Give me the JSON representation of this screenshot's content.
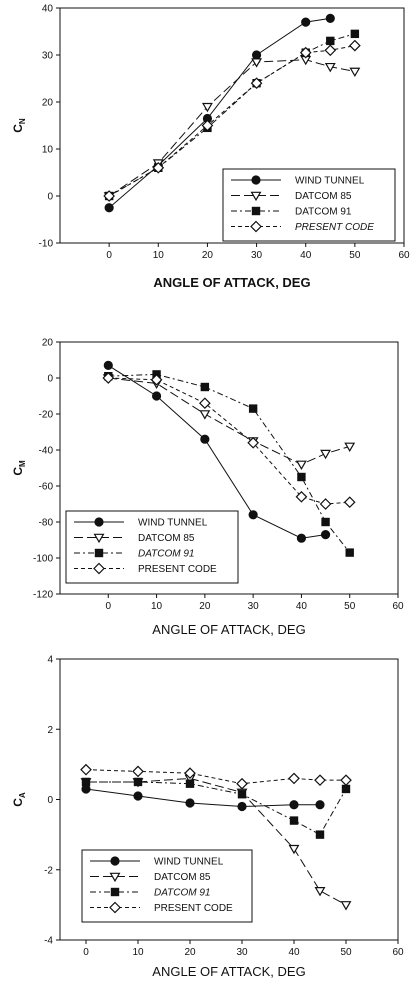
{
  "chart_data": [
    {
      "type": "line",
      "ylabel": "C",
      "ylabel_sub": "N",
      "xlabel": "ANGLE OF ATTACK, DEG",
      "xlim": [
        -10,
        60
      ],
      "ylim": [
        -10,
        40
      ],
      "xticks": [
        0,
        10,
        20,
        30,
        40,
        50,
        60
      ],
      "yticks": [
        -10,
        0,
        10,
        20,
        30,
        40
      ],
      "legend_position": "bottom-right",
      "series": [
        {
          "name": "WIND TUNNEL",
          "marker": "circle",
          "fill": "filled",
          "dash": "solid",
          "italic": false,
          "x": [
            0,
            10,
            20,
            30,
            40,
            45
          ],
          "y": [
            -2.5,
            6.5,
            16.5,
            30,
            37,
            37.8
          ]
        },
        {
          "name": "DATCOM 85",
          "marker": "triangle-down",
          "fill": "open",
          "dash": "longdash",
          "italic": false,
          "x": [
            0,
            10,
            20,
            30,
            40,
            45,
            50
          ],
          "y": [
            0,
            7,
            19,
            28.5,
            29,
            27.5,
            26.5
          ]
        },
        {
          "name": "DATCOM 91",
          "marker": "square",
          "fill": "filled",
          "dash": "dashdot",
          "italic": false,
          "x": [
            0,
            10,
            20,
            30,
            40,
            45,
            50
          ],
          "y": [
            0,
            6,
            14.5,
            24,
            30.5,
            33,
            34.5
          ]
        },
        {
          "name": "PRESENT CODE",
          "marker": "diamond",
          "fill": "open",
          "dash": "shortdash",
          "italic": true,
          "x": [
            0,
            10,
            20,
            30,
            40,
            45,
            50
          ],
          "y": [
            0,
            6,
            15,
            24,
            30.5,
            31,
            32
          ]
        }
      ]
    },
    {
      "type": "line",
      "ylabel": "C",
      "ylabel_sub": "M",
      "xlabel": "ANGLE OF ATTACK, DEG",
      "xlim": [
        -10,
        60
      ],
      "ylim": [
        -120,
        20
      ],
      "xticks": [
        0,
        10,
        20,
        30,
        40,
        50,
        60
      ],
      "yticks": [
        -120,
        -100,
        -80,
        -60,
        -40,
        -20,
        0,
        20
      ],
      "legend_position": "bottom-left",
      "series": [
        {
          "name": "WIND TUNNEL",
          "marker": "circle",
          "fill": "filled",
          "dash": "solid",
          "italic": false,
          "x": [
            0,
            10,
            20,
            30,
            40,
            45
          ],
          "y": [
            7,
            -10,
            -34,
            -76,
            -89,
            -87
          ]
        },
        {
          "name": "DATCOM 85",
          "marker": "triangle-down",
          "fill": "open",
          "dash": "longdash",
          "italic": false,
          "x": [
            0,
            10,
            20,
            30,
            40,
            45,
            50
          ],
          "y": [
            0,
            -3,
            -20,
            -35,
            -48,
            -42,
            -38
          ]
        },
        {
          "name": "DATCOM 91",
          "marker": "square",
          "fill": "filled",
          "dash": "dashdot",
          "italic": true,
          "x": [
            0,
            10,
            20,
            30,
            40,
            45,
            50
          ],
          "y": [
            1,
            2,
            -5,
            -17,
            -55,
            -80,
            -97
          ]
        },
        {
          "name": "PRESENT CODE",
          "marker": "diamond",
          "fill": "open",
          "dash": "shortdash",
          "italic": false,
          "x": [
            0,
            10,
            20,
            30,
            40,
            45,
            50
          ],
          "y": [
            0,
            -1,
            -14,
            -36,
            -66,
            -70,
            -69
          ]
        }
      ]
    },
    {
      "type": "line",
      "ylabel": "C",
      "ylabel_sub": "A",
      "xlabel": "ANGLE OF ATTACK, DEG",
      "xlim": [
        -5,
        60
      ],
      "ylim": [
        -4,
        4
      ],
      "xticks": [
        0,
        10,
        20,
        30,
        40,
        50,
        60
      ],
      "yticks": [
        -4,
        -2,
        0,
        2,
        4
      ],
      "legend_position": "bottom-left",
      "series": [
        {
          "name": "WIND TUNNEL",
          "marker": "circle",
          "fill": "filled",
          "dash": "solid",
          "italic": false,
          "x": [
            0,
            10,
            20,
            30,
            40,
            45
          ],
          "y": [
            0.3,
            0.1,
            -0.1,
            -0.2,
            -0.15,
            -0.15
          ]
        },
        {
          "name": "DATCOM 85",
          "marker": "triangle-down",
          "fill": "open",
          "dash": "longdash",
          "italic": false,
          "x": [
            0,
            10,
            20,
            30,
            40,
            45,
            50
          ],
          "y": [
            0.5,
            0.5,
            0.6,
            0.2,
            -1.4,
            -2.6,
            -3.0
          ]
        },
        {
          "name": "DATCOM 91",
          "marker": "square",
          "fill": "filled",
          "dash": "dashdot",
          "italic": true,
          "x": [
            0,
            10,
            20,
            30,
            40,
            45,
            50
          ],
          "y": [
            0.5,
            0.5,
            0.45,
            0.15,
            -0.6,
            -1.0,
            0.3
          ]
        },
        {
          "name": "PRESENT CODE",
          "marker": "diamond",
          "fill": "open",
          "dash": "shortdash",
          "italic": false,
          "x": [
            0,
            10,
            20,
            30,
            40,
            45,
            50
          ],
          "y": [
            0.85,
            0.8,
            0.75,
            0.45,
            0.6,
            0.55,
            0.55
          ]
        }
      ]
    }
  ]
}
